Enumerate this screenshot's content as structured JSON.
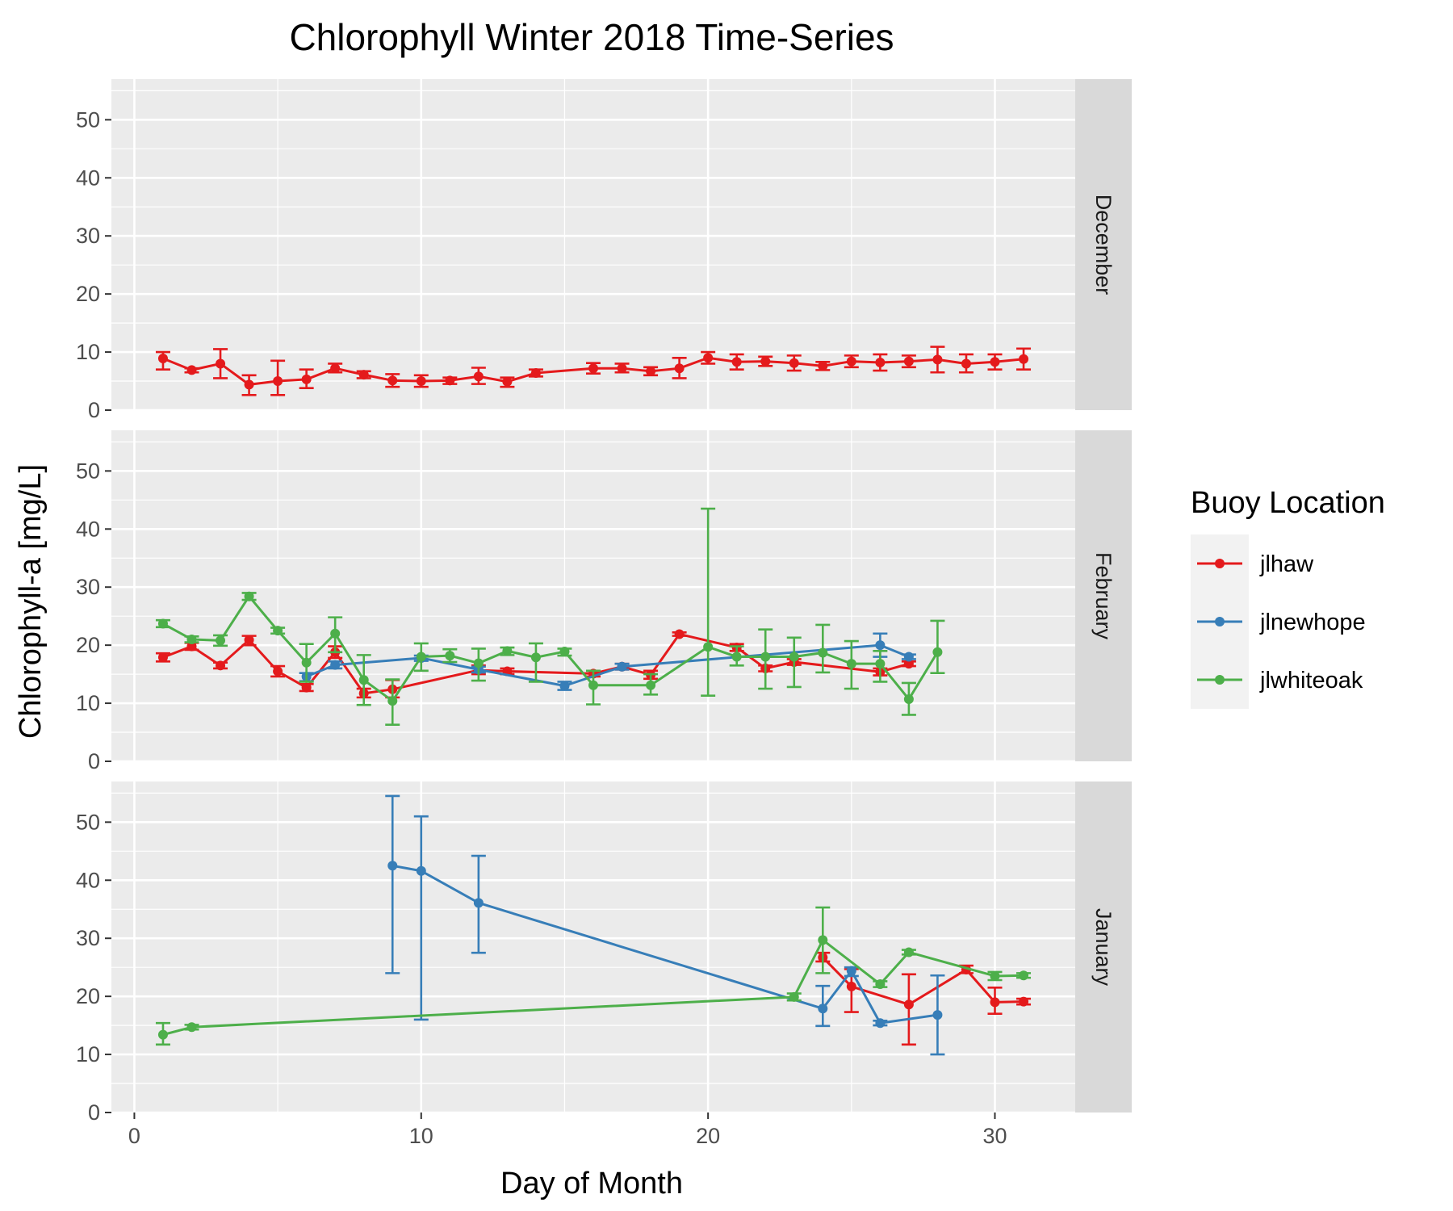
{
  "chart_data": {
    "type": "line",
    "title": "Chlorophyll Winter 2018 Time-Series",
    "xlabel": "Day of Month",
    "ylabel": "Chlorophyll-a [mg/L]",
    "xlim": [
      -0.8,
      32.8
    ],
    "ylim": [
      0,
      57
    ],
    "x_ticks": [
      0,
      10,
      20,
      30
    ],
    "y_ticks": [
      0,
      10,
      20,
      30,
      40,
      50
    ],
    "grid": true,
    "legend": {
      "title": "Buoy Location",
      "position": "right",
      "entries": [
        "jlhaw",
        "jlnewhope",
        "jlwhiteoak"
      ]
    },
    "colors": {
      "jlhaw": "#e41a1c",
      "jlnewhope": "#377eb8",
      "jlwhiteoak": "#4daf4a"
    },
    "facets": [
      {
        "label": "December",
        "series": [
          {
            "name": "jlhaw",
            "points": [
              [
                1,
                8.9,
                7.0,
                10.0
              ],
              [
                2,
                6.9,
                6.5,
                7.2
              ],
              [
                3,
                8.0,
                5.5,
                10.5
              ],
              [
                4,
                4.4,
                2.6,
                6.0
              ],
              [
                5,
                5.0,
                2.6,
                8.5
              ],
              [
                6,
                5.3,
                3.8,
                7.0
              ],
              [
                7,
                7.2,
                6.5,
                8.0
              ],
              [
                8,
                6.1,
                5.5,
                6.7
              ],
              [
                9,
                5.1,
                4.0,
                6.2
              ],
              [
                10,
                5.0,
                4.0,
                6.0
              ],
              [
                11,
                5.1,
                4.5,
                5.6
              ],
              [
                12,
                5.8,
                4.5,
                7.3
              ],
              [
                13,
                4.9,
                4.0,
                5.6
              ],
              [
                14,
                6.4,
                5.8,
                7.0
              ],
              [
                16,
                7.2,
                6.3,
                8.1
              ],
              [
                17,
                7.2,
                6.5,
                8.0
              ],
              [
                18,
                6.7,
                6.0,
                7.4
              ],
              [
                19,
                7.2,
                5.5,
                9.0
              ],
              [
                20,
                9.0,
                8.0,
                10.0
              ],
              [
                21,
                8.3,
                7.0,
                9.6
              ],
              [
                22,
                8.4,
                7.6,
                9.2
              ],
              [
                23,
                8.1,
                6.8,
                9.4
              ],
              [
                24,
                7.6,
                6.9,
                8.3
              ],
              [
                25,
                8.4,
                7.4,
                9.4
              ],
              [
                26,
                8.2,
                6.8,
                9.6
              ],
              [
                27,
                8.4,
                7.4,
                9.4
              ],
              [
                28,
                8.7,
                6.5,
                10.9
              ],
              [
                29,
                8.0,
                6.5,
                9.6
              ],
              [
                30,
                8.3,
                7.0,
                9.6
              ],
              [
                31,
                8.8,
                7.0,
                10.6
              ]
            ]
          }
        ]
      },
      {
        "label": "February",
        "series": [
          {
            "name": "jlhaw",
            "points": [
              [
                1,
                17.9,
                17.2,
                18.6
              ],
              [
                2,
                19.8,
                19.2,
                20.4
              ],
              [
                3,
                16.5,
                16.0,
                17.0
              ],
              [
                4,
                20.9,
                20.0,
                21.6
              ],
              [
                5,
                15.5,
                14.6,
                16.4
              ],
              [
                6,
                12.7,
                12.1,
                13.3
              ],
              [
                7,
                18.8,
                17.8,
                19.8
              ],
              [
                8,
                11.7,
                11.0,
                12.5
              ],
              [
                9,
                12.4,
                11.0,
                14.0
              ],
              [
                12,
                15.7,
                15.0,
                16.5
              ],
              [
                13,
                15.5,
                15.0,
                16.0
              ],
              [
                16,
                15.1,
                14.6,
                15.6
              ],
              [
                17,
                16.3,
                15.8,
                16.8
              ],
              [
                18,
                14.9,
                14.2,
                15.6
              ],
              [
                19,
                21.9,
                21.6,
                22.2
              ],
              [
                21,
                19.6,
                19.0,
                20.2
              ],
              [
                22,
                16.0,
                15.5,
                16.5
              ],
              [
                23,
                17.1,
                16.6,
                17.6
              ],
              [
                26,
                15.4,
                14.8,
                16.0
              ],
              [
                27,
                16.8,
                16.4,
                17.2
              ]
            ]
          },
          {
            "name": "jlnewhope",
            "points": [
              [
                6,
                14.6,
                13.8,
                15.2
              ],
              [
                7,
                16.6,
                16.0,
                17.2
              ],
              [
                10,
                17.8,
                17.3,
                18.2
              ],
              [
                12,
                15.8,
                15.3,
                16.3
              ],
              [
                15,
                13.0,
                12.3,
                13.7
              ],
              [
                17,
                16.3,
                15.8,
                16.8
              ],
              [
                26,
                20.0,
                18.0,
                22.0
              ],
              [
                27,
                18.0,
                17.6,
                18.4
              ]
            ]
          },
          {
            "name": "jlwhiteoak",
            "points": [
              [
                1,
                23.7,
                23.1,
                24.3
              ],
              [
                2,
                21.0,
                20.5,
                21.5
              ],
              [
                3,
                20.8,
                19.9,
                21.7
              ],
              [
                4,
                28.4,
                27.8,
                29.0
              ],
              [
                5,
                22.5,
                22.0,
                23.0
              ],
              [
                6,
                17.0,
                13.7,
                20.2
              ],
              [
                7,
                22.0,
                18.8,
                24.8
              ],
              [
                8,
                14.0,
                9.7,
                18.3
              ],
              [
                9,
                10.4,
                6.3,
                14.1
              ],
              [
                10,
                18.0,
                15.6,
                20.3
              ],
              [
                11,
                18.2,
                17.1,
                19.3
              ],
              [
                12,
                16.9,
                13.9,
                19.4
              ],
              [
                13,
                19.0,
                18.3,
                19.6
              ],
              [
                14,
                17.9,
                13.7,
                20.3
              ],
              [
                15,
                18.9,
                18.2,
                19.4
              ],
              [
                16,
                13.1,
                9.8,
                15.6
              ],
              [
                18,
                13.1,
                11.5,
                15.0
              ],
              [
                20,
                19.7,
                11.3,
                43.5
              ],
              [
                21,
                18.0,
                16.5,
                19.8
              ],
              [
                22,
                18.0,
                12.5,
                22.7
              ],
              [
                23,
                18.0,
                12.8,
                21.3
              ],
              [
                24,
                18.7,
                15.3,
                23.5
              ],
              [
                25,
                16.8,
                12.5,
                20.7
              ],
              [
                26,
                16.8,
                13.7,
                19.0
              ],
              [
                27,
                10.7,
                8.0,
                13.5
              ],
              [
                28,
                18.8,
                15.2,
                24.2
              ]
            ]
          }
        ]
      },
      {
        "label": "January",
        "series": [
          {
            "name": "jlhaw",
            "points": [
              [
                24,
                26.7,
                26.0,
                27.5
              ],
              [
                25,
                21.7,
                17.3,
                24.7
              ],
              [
                27,
                18.6,
                11.7,
                23.8
              ],
              [
                29,
                24.6,
                24.0,
                25.3
              ],
              [
                30,
                19.0,
                17.0,
                21.5
              ],
              [
                31,
                19.1,
                18.6,
                19.6
              ]
            ]
          },
          {
            "name": "jlnewhope",
            "points": [
              [
                9,
                42.5,
                24.0,
                54.5
              ],
              [
                10,
                41.6,
                16.0,
                51.0
              ],
              [
                12,
                36.1,
                27.5,
                44.2
              ],
              [
                24,
                17.9,
                14.9,
                21.8
              ],
              [
                25,
                24.4,
                23.5,
                25.0
              ],
              [
                26,
                15.4,
                15.0,
                15.8
              ],
              [
                28,
                16.8,
                10.0,
                23.6
              ]
            ]
          },
          {
            "name": "jlwhiteoak",
            "points": [
              [
                1,
                13.4,
                11.7,
                15.4
              ],
              [
                2,
                14.7,
                14.3,
                15.1
              ],
              [
                23,
                19.9,
                19.3,
                20.5
              ],
              [
                24,
                29.7,
                24.0,
                35.3
              ],
              [
                26,
                22.1,
                21.6,
                22.6
              ],
              [
                27,
                27.6,
                27.2,
                28.0
              ],
              [
                30,
                23.5,
                22.8,
                24.2
              ],
              [
                31,
                23.6,
                23.2,
                24.0
              ]
            ]
          }
        ]
      }
    ]
  }
}
